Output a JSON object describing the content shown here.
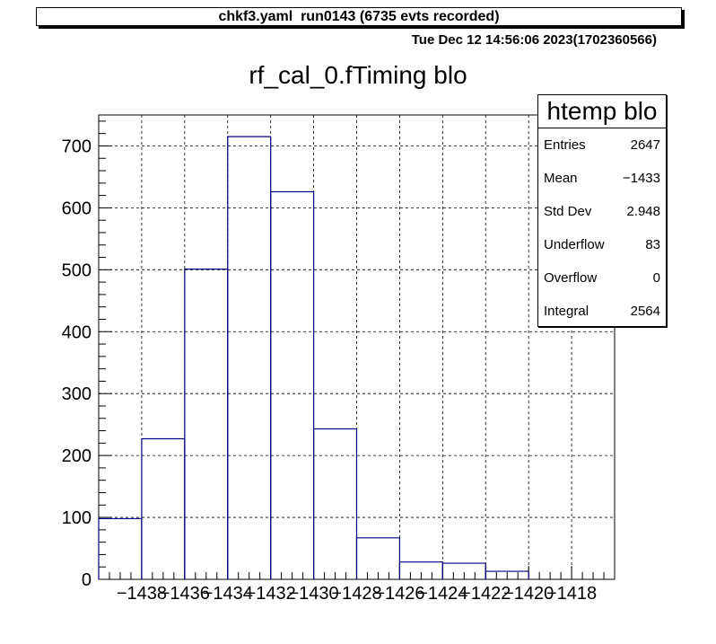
{
  "header": {
    "run_label": "chkf3.yaml  run0143 (6735 evts recorded)",
    "timestamp": "Tue Dec 12 14:56:06 2023(1702360566)"
  },
  "stats": {
    "title": "htemp blo",
    "rows": [
      {
        "key": "Entries",
        "value": "2647"
      },
      {
        "key": "Mean",
        "value": "−1433"
      },
      {
        "key": "Std Dev",
        "value": "2.948"
      },
      {
        "key": "Underflow",
        "value": "83"
      },
      {
        "key": "Overflow",
        "value": "0"
      },
      {
        "key": "Integral",
        "value": "2564"
      }
    ]
  },
  "colors": {
    "line": "#000080",
    "grid": "#000000"
  },
  "chart_data": {
    "type": "bar",
    "title": "rf_cal_0.fTiming blo",
    "xlabel": "",
    "ylabel": "",
    "xlim": [
      -1440,
      -1416
    ],
    "ylim": [
      0,
      750
    ],
    "grid": true,
    "x_ticks": [
      -1438,
      -1436,
      -1434,
      -1432,
      -1430,
      -1428,
      -1426,
      -1424,
      -1422,
      -1420,
      -1418
    ],
    "x_tick_labels": [
      "−1438",
      "−1436",
      "−1434",
      "−1432",
      "−1430",
      "−1428",
      "−1426",
      "−1424",
      "−1422",
      "−1420",
      "−1418"
    ],
    "y_ticks": [
      0,
      100,
      200,
      300,
      400,
      500,
      600,
      700
    ],
    "y_tick_labels": [
      "0",
      "100",
      "200",
      "300",
      "400",
      "500",
      "600",
      "700"
    ],
    "bin_edges": [
      -1440,
      -1438,
      -1436,
      -1434,
      -1432,
      -1430,
      -1428,
      -1426,
      -1424,
      -1422,
      -1420
    ],
    "values": [
      98,
      227,
      501,
      715,
      626,
      243,
      67,
      28,
      26,
      13
    ]
  }
}
